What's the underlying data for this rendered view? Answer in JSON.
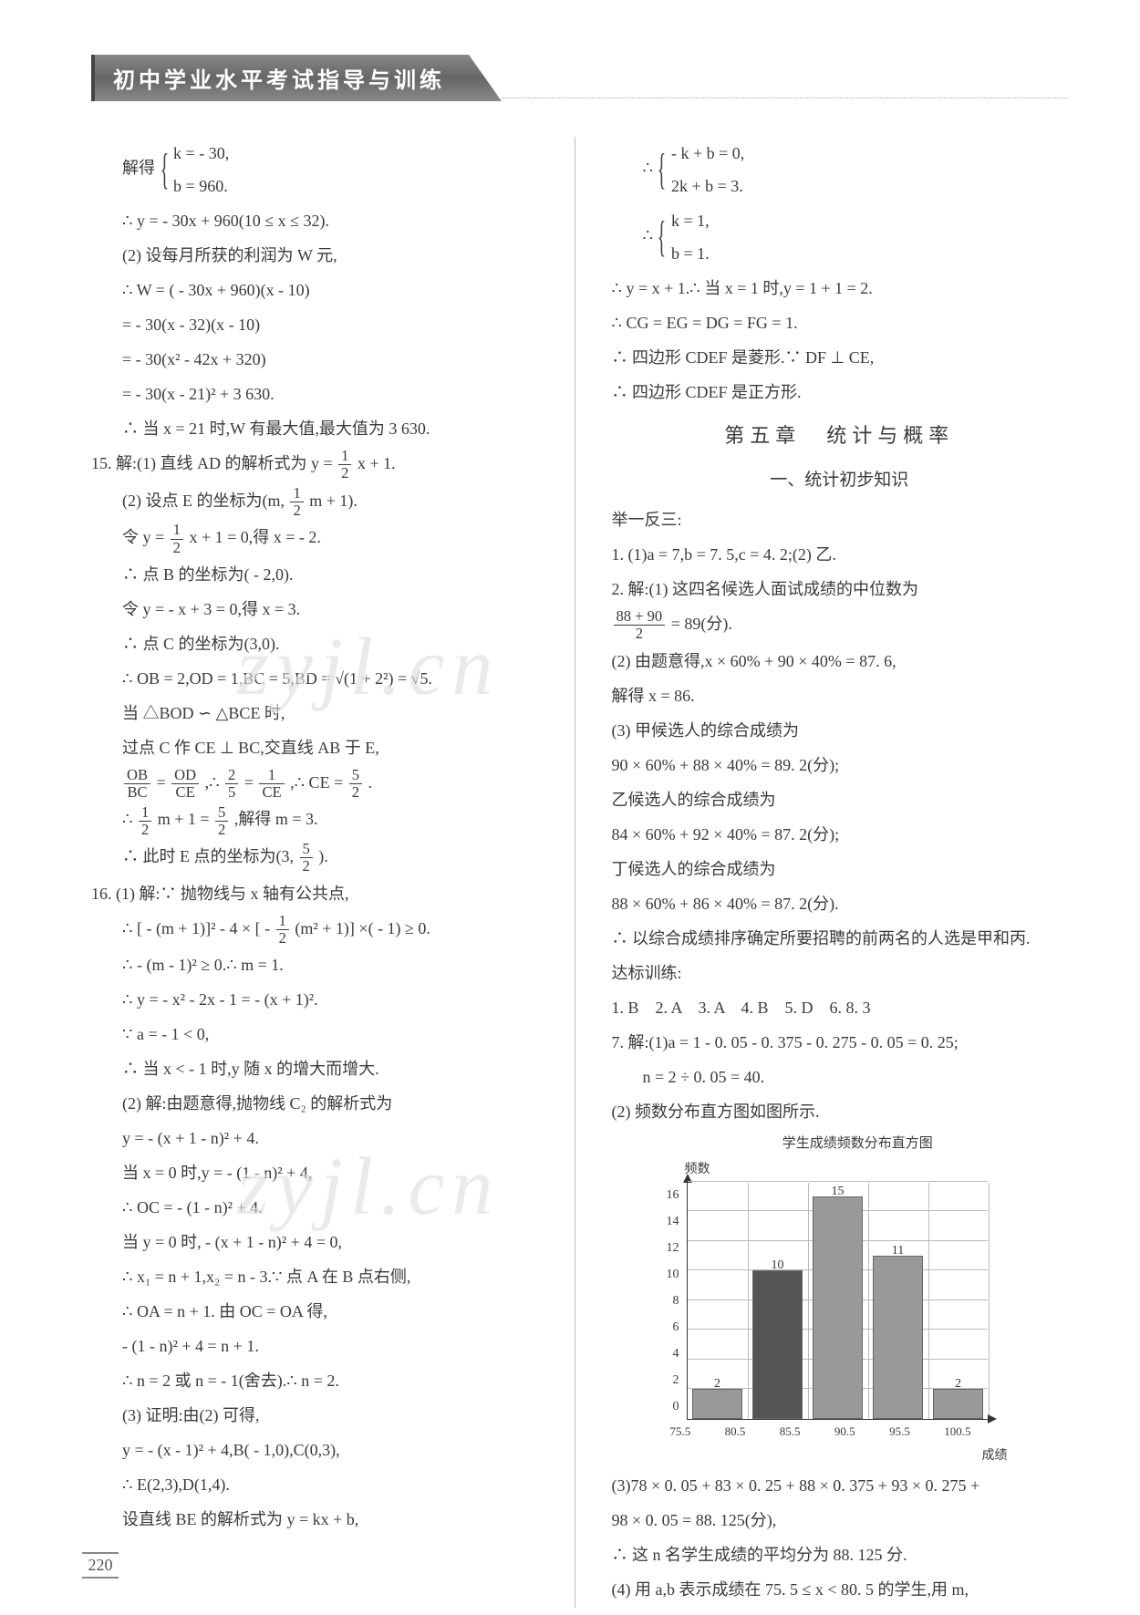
{
  "header": {
    "title": "初中学业水平考试指导与训练"
  },
  "page_number": "220",
  "watermark": "zyjl.cn",
  "left": {
    "l01a": "解得",
    "l01b": "k = - 30,",
    "l01c": "b = 960.",
    "l02": "∴ y = - 30x + 960(10 ≤ x ≤ 32).",
    "l03": "(2) 设每月所获的利润为 W 元,",
    "l04": "∴ W = ( - 30x + 960)(x - 10)",
    "l05": "= - 30(x - 32)(x - 10)",
    "l06": "= - 30(x² - 42x + 320)",
    "l07": "= - 30(x - 21)² + 3 630.",
    "l08": "∴ 当 x = 21 时,W 有最大值,最大值为 3 630.",
    "l09a": "15. 解:(1) 直线 AD 的解析式为 y = ",
    "l09b_num": "1",
    "l09b_den": "2",
    "l09c": "x + 1.",
    "l10a": "(2) 设点 E 的坐标为(m,",
    "l10b_num": "1",
    "l10b_den": "2",
    "l10c": "m + 1).",
    "l11a": "令 y = ",
    "l11b_num": "1",
    "l11b_den": "2",
    "l11c": "x + 1 = 0,得 x = - 2.",
    "l12": "∴ 点 B 的坐标为( - 2,0).",
    "l13": "令 y = - x + 3 = 0,得 x = 3.",
    "l14": "∴ 点 C 的坐标为(3,0).",
    "l15a": "∴ OB = 2,OD = 1,BC = 5,BD = ",
    "l15b": "√(1 + 2²)",
    "l15c": " = √5.",
    "l16": "当 △BOD ∽ △BCE 时,",
    "l17": "过点 C 作 CE ⊥ BC,交直线 AB 于 E,",
    "l18a_num": "OB",
    "l18a_den": "BC",
    "l18b": " = ",
    "l18c_num": "OD",
    "l18c_den": "CE",
    "l18d": ",∴ ",
    "l18e_num": "2",
    "l18e_den": "5",
    "l18f": " = ",
    "l18g_num": "1",
    "l18g_den": "CE",
    "l18h": ",∴ CE = ",
    "l18i_num": "5",
    "l18i_den": "2",
    "l18j": ".",
    "l19a": "∴ ",
    "l19b_num": "1",
    "l19b_den": "2",
    "l19c": "m + 1 = ",
    "l19d_num": "5",
    "l19d_den": "2",
    "l19e": ",解得 m = 3.",
    "l20a": "∴ 此时 E 点的坐标为(3,",
    "l20b_num": "5",
    "l20b_den": "2",
    "l20c": ").",
    "l21": "16. (1) 解:∵ 抛物线与 x 轴有公共点,",
    "l22a": "∴ [ - (m + 1)]² - 4 × [ - ",
    "l22b_num": "1",
    "l22b_den": "2",
    "l22c": "(m² + 1)] ×( - 1) ≥ 0.",
    "l23": "∴ - (m - 1)² ≥ 0.∴ m = 1.",
    "l24": "∴ y = - x² - 2x - 1 = - (x + 1)².",
    "l25": "∵ a = - 1 < 0,",
    "l26": "∴ 当 x < - 1 时,y 随 x 的增大而增大.",
    "l27": "(2) 解:由题意得,抛物线 C₂ 的解析式为",
    "l28": "y = - (x + 1 - n)² + 4.",
    "l29": "当 x = 0 时,y = - (1 - n)² + 4,",
    "l30": "∴ OC = - (1 - n)² + 4.",
    "l31": "当 y = 0 时, - (x + 1 - n)² + 4 = 0,",
    "l32": "∴ x₁ = n + 1,x₂ = n - 3.∵ 点 A 在 B 点右侧,",
    "l33": "∴ OA = n + 1. 由 OC = OA 得,",
    "l34": "- (1 - n)² + 4 = n + 1.",
    "l35": "∴ n = 2 或 n = - 1(舍去).∴ n = 2.",
    "l36": "(3) 证明:由(2) 可得,",
    "l37": "y = - (x - 1)² + 4,B( - 1,0),C(0,3),",
    "l38": "∴ E(2,3),D(1,4).",
    "l39": "设直线 BE 的解析式为 y = kx + b,"
  },
  "right": {
    "r01a": "∴",
    "r01b": "- k + b = 0,",
    "r01c": "2k + b = 3.",
    "r02a": "∴",
    "r02b": "k = 1,",
    "r02c": "b = 1.",
    "r03": "∴ y = x + 1.∴ 当 x = 1 时,y = 1 + 1 = 2.",
    "r04": "∴ CG = EG = DG = FG = 1.",
    "r05": "∴ 四边形 CDEF 是菱形.∵ DF ⊥ CE,",
    "r06": "∴ 四边形 CDEF 是正方形.",
    "chapter": "第五章　统计与概率",
    "section": "一、统计初步知识",
    "r07": "举一反三:",
    "r08": "1. (1)a = 7,b = 7. 5,c = 4. 2;(2) 乙.",
    "r09": "2. 解:(1) 这四名候选人面试成绩的中位数为",
    "r10a_num": "88 + 90",
    "r10a_den": "2",
    "r10b": " = 89(分).",
    "r11": "(2) 由题意得,x × 60% + 90 × 40% = 87. 6,",
    "r12": "解得 x = 86.",
    "r13": "(3) 甲候选人的综合成绩为",
    "r14": "90 × 60% + 88 × 40% = 89. 2(分);",
    "r15": "乙候选人的综合成绩为",
    "r16": "84 × 60% + 92 × 40% = 87. 2(分);",
    "r17": "丁候选人的综合成绩为",
    "r18": "88 × 60% + 86 × 40% = 87. 2(分).",
    "r19": "∴ 以综合成绩排序确定所要招聘的前两名的人选是甲和丙.",
    "r20": "达标训练:",
    "r21": "1. B　2. A　3. A　4. B　5. D　6. 8. 3",
    "r22": "7. 解:(1)a = 1 - 0. 05 - 0. 375 - 0. 275 - 0. 05 = 0. 25;",
    "r23": "n = 2 ÷ 0. 05 = 40.",
    "r24": "(2) 频数分布直方图如图所示.",
    "chart": {
      "title": "学生成绩频数分布直方图",
      "ylabel": "频数",
      "xlabel": "成绩",
      "yticks": [
        "0",
        "2",
        "4",
        "6",
        "8",
        "10",
        "12",
        "14",
        "16"
      ],
      "ymax": 16,
      "xticks": [
        "75.5",
        "80.5",
        "85.5",
        "90.5",
        "95.5",
        "100.5"
      ],
      "bars": [
        {
          "value": 2,
          "label": "2",
          "color": "#999"
        },
        {
          "value": 10,
          "label": "10",
          "color": "#555"
        },
        {
          "value": 15,
          "label": "15",
          "color": "#999"
        },
        {
          "value": 11,
          "label": "11",
          "color": "#999"
        },
        {
          "value": 2,
          "label": "2",
          "color": "#999"
        }
      ]
    },
    "r25": "(3)78 × 0. 05 + 83 × 0. 25 + 88 × 0. 375 + 93 × 0. 275 +",
    "r26": "98 × 0. 05 = 88. 125(分),",
    "r27": "∴ 这 n 名学生成绩的平均分为 88. 125 分.",
    "r28": "(4) 用 a,b 表示成绩在 75. 5 ≤ x < 80. 5 的学生,用 m,"
  }
}
